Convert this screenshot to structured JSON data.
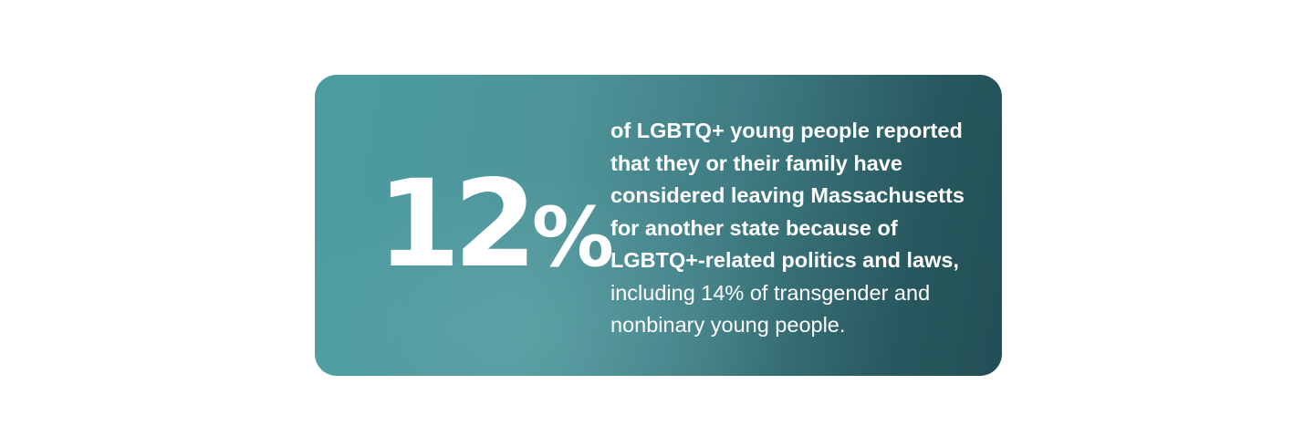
{
  "stat": {
    "number": "12",
    "percent_sign": "%",
    "lines_bold": [
      "of LGBTQ+ young people reported",
      "that they or their family have",
      "considered leaving Massachusetts",
      "for another state because of",
      "LGBTQ+-related politics and laws,"
    ],
    "lines_regular": [
      "including 14% of transgender and",
      "nonbinary young people."
    ]
  },
  "colors": {
    "card_start": "#4a9da1",
    "card_end": "#224f56",
    "text": "#ffffff"
  }
}
